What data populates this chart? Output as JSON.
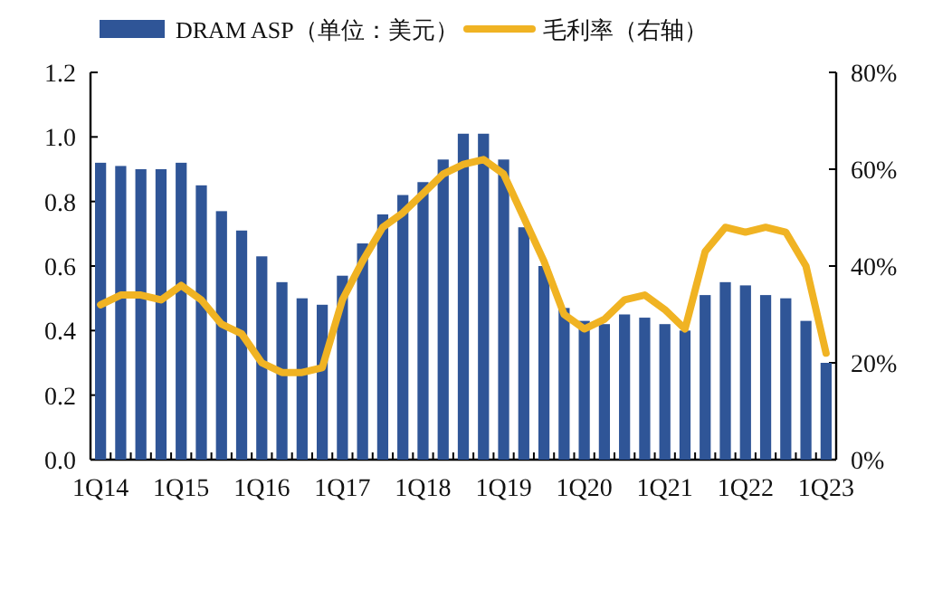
{
  "chart_data": {
    "type": "bar",
    "categories": [
      "1Q14",
      null,
      null,
      null,
      "1Q15",
      null,
      null,
      null,
      "1Q16",
      null,
      null,
      null,
      "1Q17",
      null,
      null,
      null,
      "1Q18",
      null,
      null,
      null,
      "1Q19",
      null,
      null,
      null,
      "1Q20",
      null,
      null,
      null,
      "1Q21",
      null,
      null,
      null,
      "1Q22",
      null,
      null,
      null,
      "1Q23"
    ],
    "series": [
      {
        "name": "DRAM ASP（单位：美元）",
        "color": "#2f5597",
        "values": [
          0.92,
          0.91,
          0.9,
          0.9,
          0.92,
          0.85,
          0.77,
          0.71,
          0.63,
          0.55,
          0.5,
          0.48,
          0.57,
          0.67,
          0.76,
          0.82,
          0.86,
          0.93,
          1.01,
          1.01,
          0.93,
          0.72,
          0.6,
          0.47,
          0.43,
          0.42,
          0.45,
          0.44,
          0.42,
          0.4,
          0.51,
          0.55,
          0.54,
          0.51,
          0.5,
          0.43,
          0.3
        ]
      },
      {
        "name": "毛利率（右轴）",
        "type": "line",
        "axis": "y2",
        "color": "#f0b323",
        "values": [
          32,
          34,
          34,
          33,
          36,
          33,
          28,
          26,
          20,
          18,
          18,
          19,
          33,
          41,
          48,
          51,
          55,
          59,
          61,
          62,
          59,
          50,
          41,
          30,
          27,
          29,
          33,
          34,
          31,
          27,
          43,
          48,
          47,
          48,
          47,
          40,
          22
        ]
      }
    ],
    "ylim": [
      0,
      1.2
    ],
    "yticks": [
      {
        "value": 0,
        "label": "0.0"
      },
      {
        "value": 0.2,
        "label": "0.2"
      },
      {
        "value": 0.4,
        "label": "0.4"
      },
      {
        "value": 0.6,
        "label": "0.6"
      },
      {
        "value": 0.8,
        "label": "0.8"
      },
      {
        "value": 1.0,
        "label": "1.0"
      },
      {
        "value": 1.2,
        "label": "1.2"
      }
    ],
    "y2lim": [
      0,
      80
    ],
    "y2ticks": [
      {
        "value": 0,
        "label": "0%"
      },
      {
        "value": 20,
        "label": "20%"
      },
      {
        "value": 40,
        "label": "40%"
      },
      {
        "value": 60,
        "label": "60%"
      },
      {
        "value": 80,
        "label": "80%"
      }
    ],
    "legend": "top"
  }
}
